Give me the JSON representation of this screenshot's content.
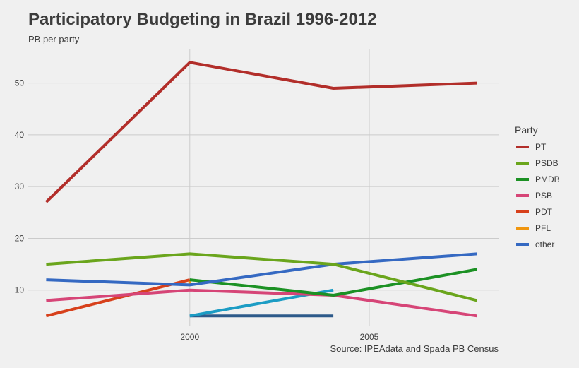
{
  "title": "Participatory Budgeting in Brazil 1996-2012",
  "subtitle": "PB per party",
  "caption": "Source: IPEAdata and Spada PB Census",
  "legend_title": "Party",
  "chart_data": {
    "type": "line",
    "title": "Participatory Budgeting in Brazil 1996-2012",
    "subtitle": "PB per party",
    "xlabel": "",
    "ylabel": "",
    "xlim": [
      1995.5,
      2008.6
    ],
    "ylim": [
      3,
      56.5
    ],
    "x_ticks": [
      2000,
      2005
    ],
    "y_ticks": [
      10,
      20,
      30,
      40,
      50
    ],
    "grid": true,
    "legend_position": "right",
    "series": [
      {
        "name": "PT",
        "color": "#b22e2a",
        "x": [
          1996,
          2000,
          2004,
          2008
        ],
        "y": [
          27,
          54,
          49,
          50
        ]
      },
      {
        "name": "PSDB",
        "color": "#6aa51c",
        "x": [
          1996,
          2000,
          2004,
          2008
        ],
        "y": [
          15,
          17,
          15,
          8
        ]
      },
      {
        "name": "PMDB",
        "color": "#1c9124",
        "x": [
          2000,
          2004,
          2008
        ],
        "y": [
          12,
          9,
          14
        ]
      },
      {
        "name": "PSB",
        "color": "#d64577",
        "x": [
          1996,
          2000,
          2004,
          2008
        ],
        "y": [
          8,
          10,
          9,
          5
        ]
      },
      {
        "name": "PDT",
        "color": "#d7401b",
        "x": [
          1996,
          2000
        ],
        "y": [
          5,
          12
        ]
      },
      {
        "name": "PFL",
        "color": "#f0960f",
        "x": [
          2000,
          2000
        ],
        "y": [
          11,
          12
        ]
      },
      {
        "name": "other",
        "color": "#3569c2",
        "x": [
          1996,
          2000,
          2004,
          2008
        ],
        "y": [
          12,
          11,
          15,
          17
        ]
      },
      {
        "name": "",
        "color": "#1c9cc4",
        "x": [
          2000,
          2004
        ],
        "y": [
          5,
          10
        ]
      },
      {
        "name": "",
        "color": "#2d5a8a",
        "x": [
          2000,
          2004
        ],
        "y": [
          5,
          5
        ]
      }
    ]
  }
}
